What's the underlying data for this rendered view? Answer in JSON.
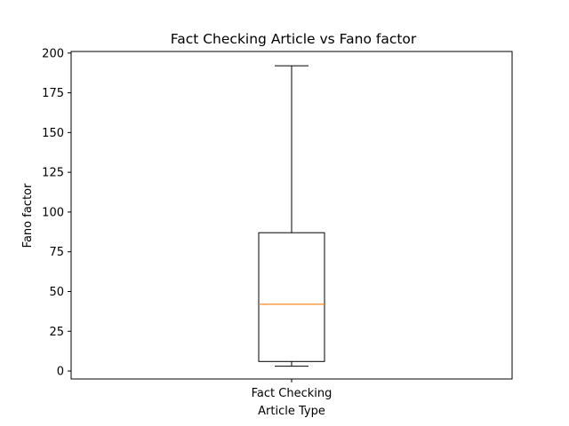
{
  "chart_data": {
    "type": "box",
    "title": "Fact Checking Article vs Fano factor",
    "xlabel": "Article Type",
    "ylabel": "Fano factor",
    "categories": [
      "Fact Checking"
    ],
    "boxes": [
      {
        "category": "Fact Checking",
        "whisker_low": 3,
        "q1": 6,
        "median": 42,
        "q3": 87,
        "whisker_high": 192
      }
    ],
    "ylim": [
      -5,
      201
    ],
    "yticks": [
      0,
      25,
      50,
      75,
      100,
      125,
      150,
      175,
      200
    ],
    "ytick_labels": [
      "0",
      "25",
      "50",
      "75",
      "100",
      "125",
      "150",
      "175",
      "200"
    ],
    "grid": false,
    "colors": {
      "box": "#000000",
      "median": "#ff7f0e",
      "whisker": "#000000"
    }
  }
}
